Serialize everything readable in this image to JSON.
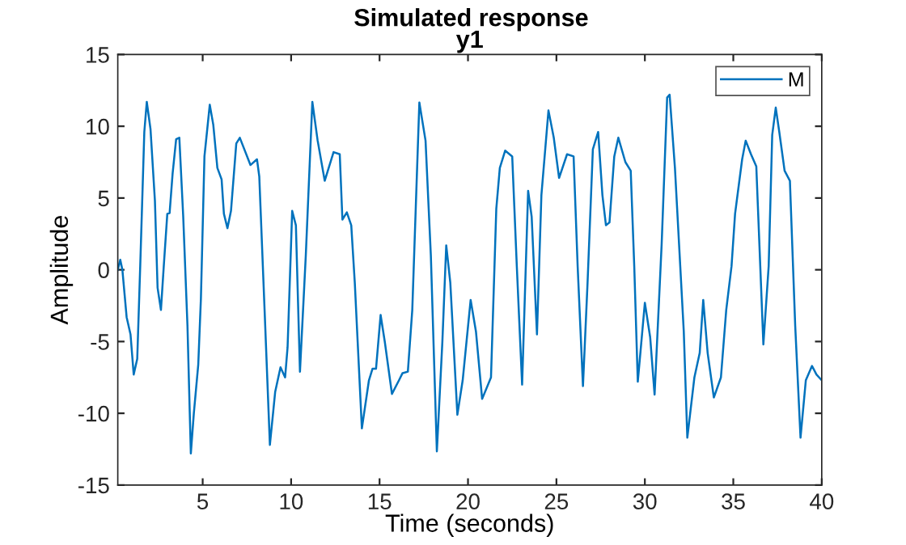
{
  "chart_data": {
    "type": "line",
    "title": "Simulated response",
    "subtitle": "y1",
    "xlabel": "Time (seconds)",
    "ylabel": "Amplitude",
    "xlim": [
      0.2,
      40
    ],
    "ylim": [
      -15,
      15
    ],
    "xticks": [
      5,
      10,
      15,
      20,
      25,
      30,
      35,
      40
    ],
    "yticks": [
      -15,
      -10,
      -5,
      0,
      5,
      10,
      15
    ],
    "grid": false,
    "legend": "top right",
    "line_style": "solid",
    "marker": "none",
    "series": [
      {
        "name": "M",
        "color": "#0072bd",
        "x": [
          0.2,
          0.34,
          0.46,
          0.7,
          0.92,
          1.1,
          1.3,
          1.47,
          1.7,
          1.84,
          2.05,
          2.3,
          2.45,
          2.64,
          2.8,
          3.0,
          3.13,
          3.3,
          3.5,
          3.68,
          3.9,
          4.14,
          4.33,
          4.5,
          4.75,
          4.9,
          5.1,
          5.4,
          5.6,
          5.83,
          6.07,
          6.2,
          6.4,
          6.6,
          6.9,
          7.1,
          7.7,
          8.07,
          8.2,
          8.5,
          8.8,
          9.1,
          9.4,
          9.66,
          9.8,
          10.06,
          10.27,
          10.5,
          10.83,
          11.2,
          11.5,
          11.9,
          12.4,
          12.75,
          12.9,
          13.15,
          13.4,
          13.6,
          14.0,
          14.4,
          14.6,
          14.8,
          15.06,
          15.3,
          15.7,
          16.1,
          16.3,
          16.6,
          16.85,
          17.25,
          17.6,
          17.9,
          18.24,
          18.55,
          18.77,
          19.0,
          19.4,
          19.7,
          20.15,
          20.45,
          20.8,
          21.3,
          21.6,
          21.8,
          22.1,
          22.5,
          22.76,
          23.06,
          23.4,
          23.6,
          23.9,
          24.15,
          24.55,
          24.85,
          25.15,
          25.6,
          25.97,
          26.2,
          26.5,
          26.76,
          27.06,
          27.36,
          27.6,
          27.8,
          28.0,
          28.27,
          28.5,
          28.9,
          29.2,
          29.4,
          29.6,
          30.0,
          30.3,
          30.55,
          30.95,
          31.26,
          31.4,
          31.7,
          32.2,
          32.4,
          32.8,
          33.1,
          33.3,
          33.55,
          33.9,
          34.3,
          34.6,
          34.9,
          35.1,
          35.5,
          35.7,
          36.0,
          36.3,
          36.7,
          37.0,
          37.2,
          37.4,
          37.6,
          37.9,
          38.2,
          38.5,
          38.8,
          39.1,
          39.45,
          39.7,
          40.0
        ],
        "values": [
          0,
          0.7,
          0,
          -3.3,
          -4.5,
          -7.3,
          -6.2,
          0.3,
          9.6,
          11.7,
          9.8,
          4.8,
          -1.25,
          -2.8,
          0.25,
          3.9,
          3.95,
          6.7,
          9.1,
          9.2,
          3.7,
          -3.9,
          -12.8,
          -10,
          -6.6,
          -2,
          7.9,
          11.5,
          10.1,
          7.1,
          6.3,
          3.9,
          2.9,
          4.1,
          8.8,
          9.2,
          7.3,
          7.7,
          6.5,
          -2.8,
          -12.2,
          -8.5,
          -6.8,
          -7.5,
          -5.4,
          4.1,
          3.1,
          -7.1,
          1.0,
          11.7,
          9.0,
          6.2,
          8.2,
          8.05,
          3.5,
          4.0,
          3.1,
          -0.9,
          -11.05,
          -7.7,
          -6.9,
          -6.9,
          -3.15,
          -5.05,
          -8.65,
          -7.7,
          -7.2,
          -7.1,
          -2.8,
          11.66,
          9.0,
          1.0,
          -12.65,
          -5.05,
          1.7,
          -0.9,
          -10.1,
          -7.7,
          -2.1,
          -4.3,
          -9.0,
          -7.5,
          4.25,
          7.1,
          8.3,
          7.9,
          0.25,
          -8.0,
          5.5,
          3.7,
          -4.5,
          5.2,
          11.1,
          9.2,
          6.4,
          8.05,
          7.9,
          0.25,
          -8.1,
          -0.9,
          8.4,
          9.6,
          5.2,
          3.1,
          3.3,
          7.9,
          9.2,
          7.5,
          6.9,
          0.25,
          -7.8,
          -2.3,
          -4.7,
          -8.7,
          1.8,
          12.0,
          12.2,
          7.1,
          -4.3,
          -11.7,
          -7.5,
          -5.8,
          -2.1,
          -5.8,
          -8.9,
          -7.5,
          -2.8,
          0.25,
          3.9,
          7.7,
          9.0,
          8.05,
          7.2,
          -5.2,
          0.25,
          9.4,
          11.3,
          9.6,
          6.9,
          6.2,
          -3.9,
          -11.7,
          -7.7,
          -6.7,
          -7.3,
          -7.7
        ]
      }
    ]
  }
}
